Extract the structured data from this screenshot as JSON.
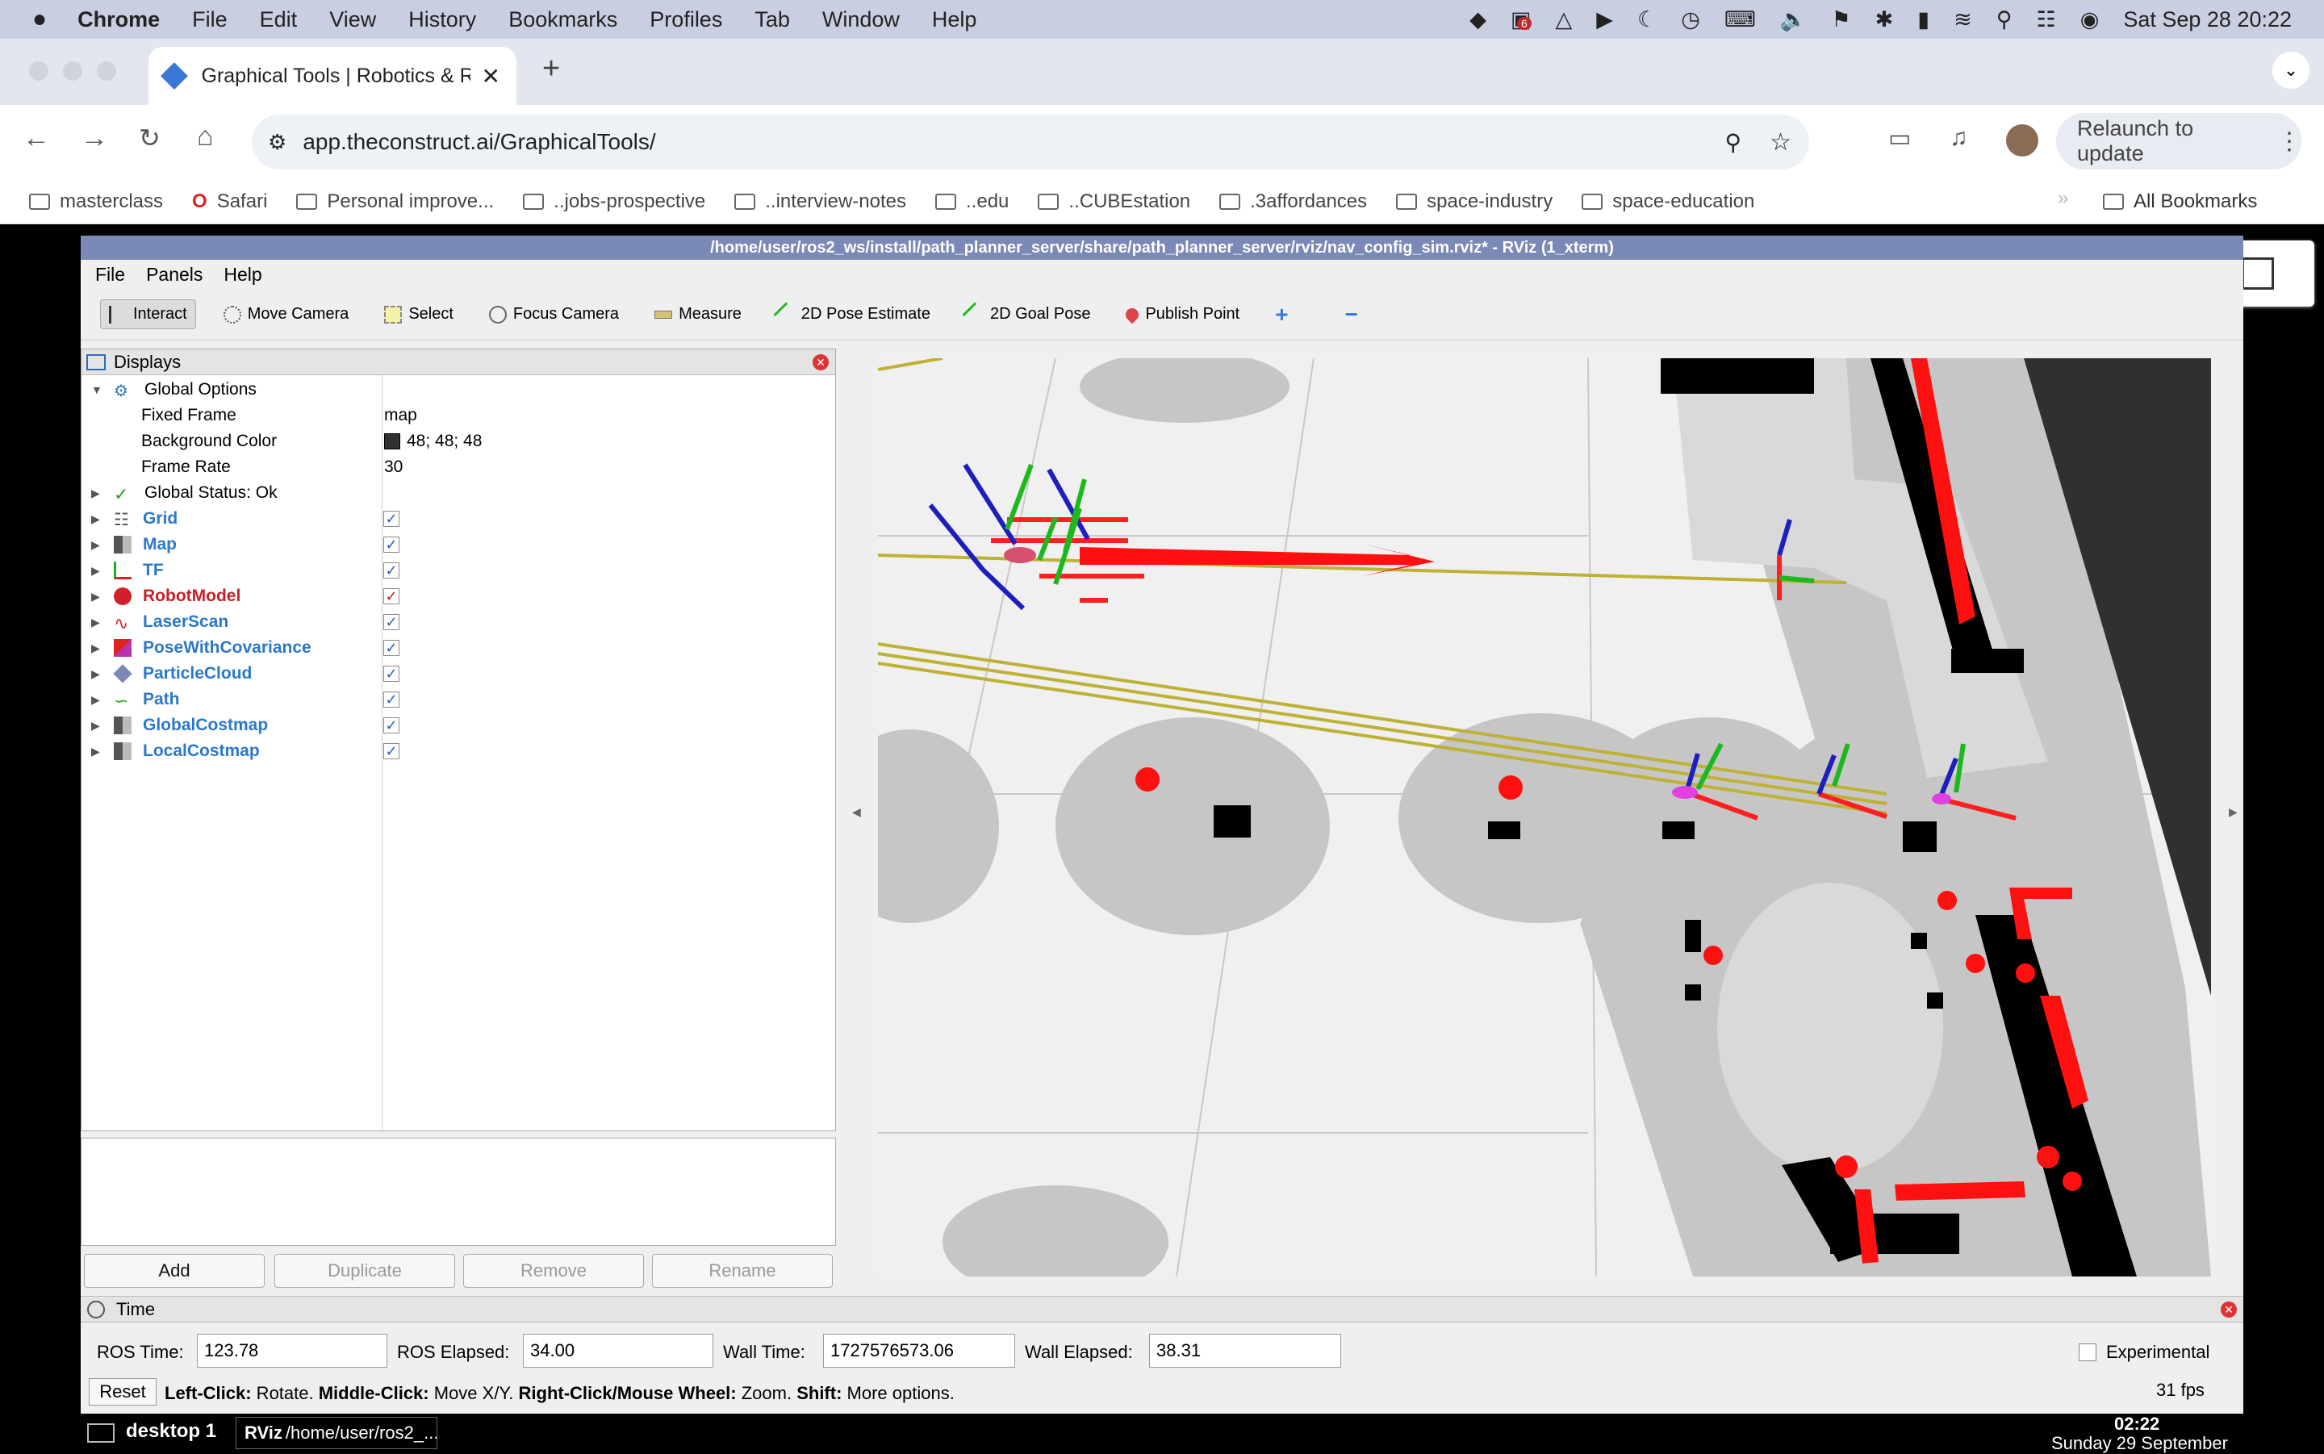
{
  "menubar": {
    "apple": "",
    "app": "Chrome",
    "items": [
      "File",
      "Edit",
      "View",
      "History",
      "Bookmarks",
      "Profiles",
      "Tab",
      "Window",
      "Help"
    ],
    "datetime": "Sat Sep 28  20:22",
    "badge": "6"
  },
  "browser": {
    "tab_title": "Graphical Tools | Robotics & R",
    "new_tab": "+",
    "url": "app.theconstruct.ai/GraphicalTools/",
    "relaunch": "Relaunch to update",
    "bookmarks": [
      "masterclass",
      "Safari",
      "Personal improve...",
      "..jobs-prospective",
      "..interview-notes",
      "..edu",
      "..CUBEstation",
      ".3affordances",
      "space-industry",
      "space-education"
    ],
    "more": "»",
    "all_bookmarks": "All Bookmarks"
  },
  "rviz": {
    "title": "/home/user/ros2_ws/install/path_planner_server/share/path_planner_server/rviz/nav_config_sim.rviz* - RViz (1_xterm)",
    "menu": [
      "File",
      "Panels",
      "Help"
    ],
    "tools": [
      "Interact",
      "Move Camera",
      "Select",
      "Focus Camera",
      "Measure",
      "2D Pose Estimate",
      "2D Goal Pose",
      "Publish Point"
    ],
    "displays_title": "Displays",
    "global_options": "Global Options",
    "fixed_frame_label": "Fixed Frame",
    "fixed_frame_value": "map",
    "bg_color_label": "Background Color",
    "bg_color_value": "48; 48; 48",
    "frame_rate_label": "Frame Rate",
    "frame_rate_value": "30",
    "global_status": "Global Status: Ok",
    "displays": [
      {
        "name": "Grid",
        "color": "blue"
      },
      {
        "name": "Map",
        "color": "blue"
      },
      {
        "name": "TF",
        "color": "blue"
      },
      {
        "name": "RobotModel",
        "color": "red"
      },
      {
        "name": "LaserScan",
        "color": "blue"
      },
      {
        "name": "PoseWithCovariance",
        "color": "blue"
      },
      {
        "name": "ParticleCloud",
        "color": "blue"
      },
      {
        "name": "Path",
        "color": "blue"
      },
      {
        "name": "GlobalCostmap",
        "color": "blue"
      },
      {
        "name": "LocalCostmap",
        "color": "blue"
      }
    ],
    "buttons": {
      "add": "Add",
      "duplicate": "Duplicate",
      "remove": "Remove",
      "rename": "Rename"
    },
    "time_title": "Time",
    "ros_time_label": "ROS Time:",
    "ros_time": "123.78",
    "ros_elapsed_label": "ROS Elapsed:",
    "ros_elapsed": "34.00",
    "wall_time_label": "Wall Time:",
    "wall_time": "1727576573.06",
    "wall_elapsed_label": "Wall Elapsed:",
    "wall_elapsed": "38.31",
    "experimental": "Experimental",
    "reset": "Reset",
    "hint_leftclick": "Left-Click:",
    "hint_rotate": " Rotate. ",
    "hint_middle": "Middle-Click:",
    "hint_move": " Move X/Y. ",
    "hint_right": "Right-Click/Mouse Wheel:",
    "hint_zoom": " Zoom. ",
    "hint_shift": "Shift:",
    "hint_more": " More options.",
    "fps": "31 fps"
  },
  "taskbar": {
    "desktop": "desktop 1",
    "window": "/home/user/ros2_...",
    "time": "02:22",
    "date": "Sunday 29 September"
  }
}
